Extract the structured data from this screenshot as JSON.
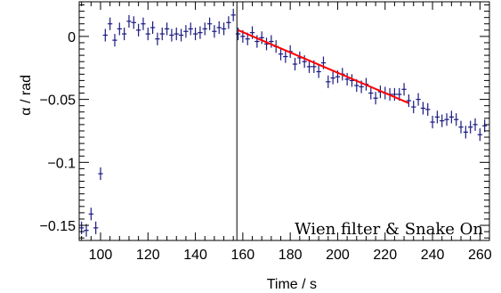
{
  "chart_data": {
    "type": "scatter",
    "title": "",
    "xlabel": "Time / s",
    "ylabel": "α / rad",
    "xlim": [
      91,
      264
    ],
    "ylim": [
      -0.162,
      0.0275
    ],
    "x_ticks": [
      100,
      120,
      140,
      160,
      180,
      200,
      220,
      240,
      260
    ],
    "x_tick_labels": [
      "100",
      "120",
      "140",
      "160",
      "180",
      "200",
      "220",
      "240",
      "260"
    ],
    "y_ticks": [
      0,
      -0.05,
      -0.1,
      -0.15
    ],
    "y_tick_labels": [
      "0",
      "−0.05",
      "−0.1",
      "−0.15"
    ],
    "grid": false,
    "legend": "none",
    "annotation": "Wien filter & Snake On",
    "marker_color": "#1a1a80",
    "fit_color": "#ff0000",
    "vertical_line": {
      "x": 157.5,
      "color": "#000000"
    },
    "fit_line": {
      "x": [
        158,
        230
      ],
      "y": [
        0.005,
        -0.053
      ]
    },
    "error": {
      "y_err": 0.005,
      "x_err": 1
    },
    "series": [
      {
        "x": [
          92,
          94,
          96,
          98,
          100,
          102,
          104,
          106,
          108,
          110,
          112,
          114,
          116,
          118,
          120,
          122,
          124,
          126,
          128,
          130,
          132,
          134,
          136,
          138,
          140,
          142,
          144,
          146,
          148,
          150,
          152,
          154,
          156,
          158,
          160,
          162,
          164,
          166,
          168,
          170,
          172,
          174,
          176,
          178,
          180,
          182,
          184,
          186,
          188,
          190,
          192,
          194,
          196,
          198,
          200,
          202,
          204,
          206,
          208,
          210,
          212,
          214,
          216,
          218,
          220,
          222,
          224,
          226,
          228,
          230,
          232,
          234,
          236,
          238,
          240,
          242,
          244,
          246,
          248,
          250,
          252,
          254,
          256,
          258,
          260,
          262
        ],
        "y": [
          -0.152,
          -0.154,
          -0.141,
          -0.152,
          -0.109,
          0.001,
          0.01,
          -0.003,
          0.006,
          0.002,
          0.012,
          0.011,
          0.005,
          0.01,
          0.002,
          0.007,
          -0.002,
          0.002,
          0.006,
          0.001,
          0.002,
          0.001,
          0.004,
          0.006,
          0.002,
          0.003,
          0.006,
          0.01,
          0.004,
          0.007,
          0.006,
          0.011,
          0.017,
          0.002,
          0.0,
          -0.002,
          0.003,
          -0.004,
          -0.001,
          -0.006,
          -0.004,
          -0.008,
          -0.014,
          -0.016,
          -0.012,
          -0.022,
          -0.017,
          -0.02,
          -0.024,
          -0.024,
          -0.028,
          -0.021,
          -0.036,
          -0.033,
          -0.032,
          -0.03,
          -0.034,
          -0.035,
          -0.039,
          -0.04,
          -0.038,
          -0.045,
          -0.049,
          -0.044,
          -0.045,
          -0.046,
          -0.046,
          -0.046,
          -0.042,
          -0.051,
          -0.056,
          -0.05,
          -0.057,
          -0.058,
          -0.068,
          -0.064,
          -0.067,
          -0.066,
          -0.064,
          -0.066,
          -0.072,
          -0.076,
          -0.072,
          -0.07,
          -0.078,
          -0.071
        ]
      }
    ]
  }
}
